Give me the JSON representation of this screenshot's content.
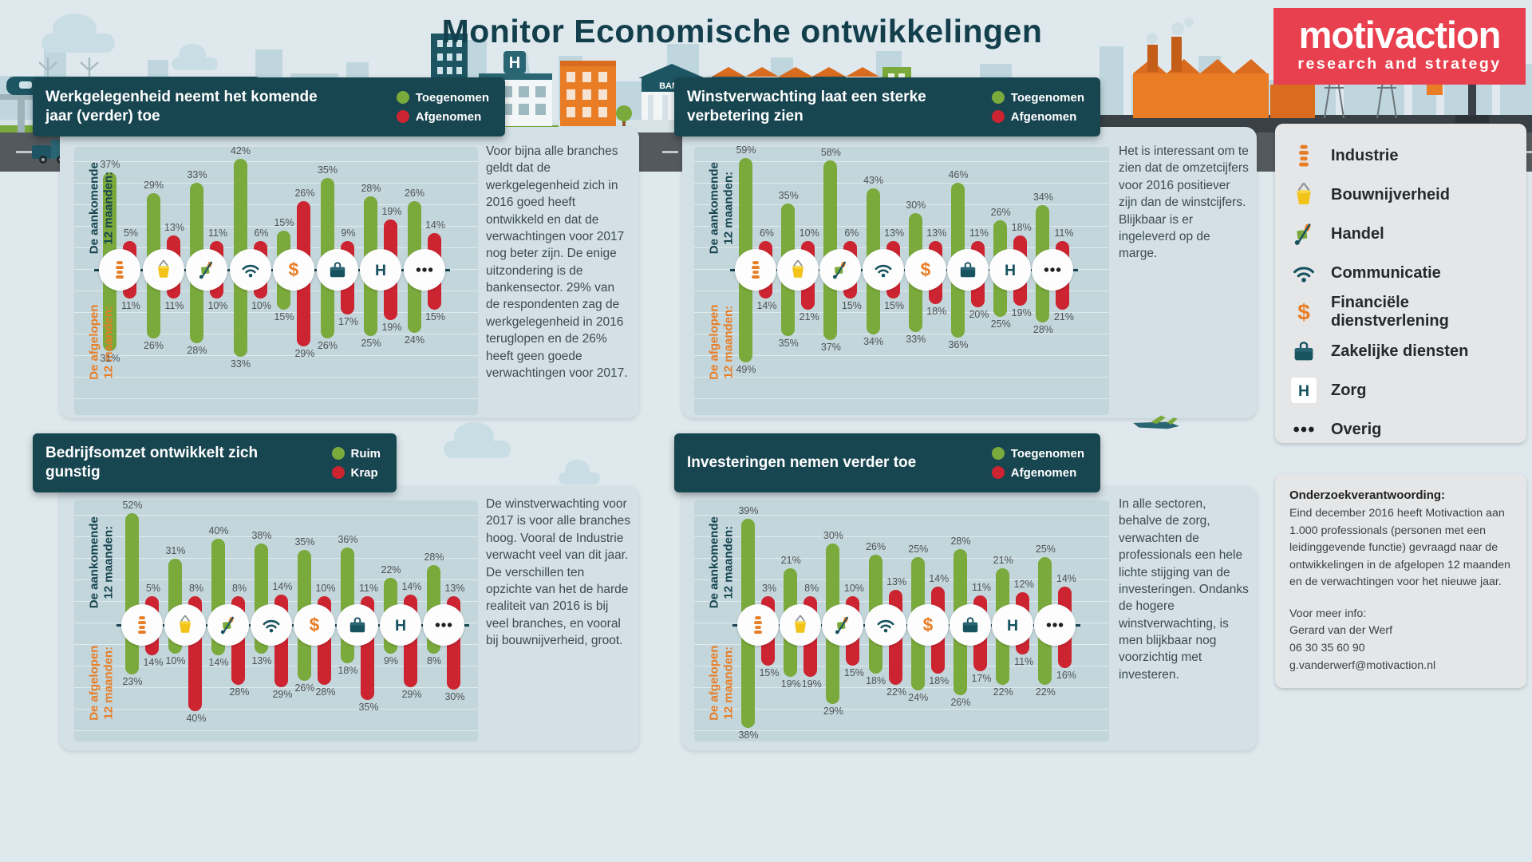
{
  "title": "Monitor Economische ontwikkelingen",
  "logo": {
    "name": "motivaction",
    "tagline": "research and strategy"
  },
  "colors": {
    "green": "#7aa93c",
    "red": "#cc2430",
    "orange": "#e87d26",
    "teal_dark": "#174550",
    "panel_bg": "#d3e1e6",
    "plot_bg": "#c3d6db",
    "page_bg": "#dfe9ed",
    "logo_red": "#e8404e",
    "box_grey": "#e5e6e7",
    "label_grey": "#4d5356",
    "text_dark": "#3c4a51"
  },
  "unit": "%",
  "axis_labels": {
    "upcoming": [
      "De aankomende",
      "12 maanden:"
    ],
    "past": [
      "De afgelopen",
      "12 maanden:"
    ]
  },
  "categories": [
    "Industrie",
    "Bouwnijverheid",
    "Handel",
    "Communicatie",
    "Financiële dienstverlening",
    "Zakelijke diensten",
    "Zorg",
    "Overig"
  ],
  "category_icons": [
    "industrie",
    "bouwnijverheid",
    "handel",
    "communicatie",
    "financieel",
    "zakelijk",
    "zorg",
    "overig"
  ],
  "chart_data": [
    {
      "id": "werkgelegenheid",
      "type": "bar",
      "title": "Werkgelegenheid neemt het komende jaar (verder) toe",
      "legend": [
        {
          "label": "Toegenomen",
          "color": "green"
        },
        {
          "label": "Afgenomen",
          "color": "red"
        }
      ],
      "categories": [
        "Industrie",
        "Bouwnijverheid",
        "Handel",
        "Communicatie",
        "Financiële dienstverlening",
        "Zakelijke diensten",
        "Zorg",
        "Overig"
      ],
      "series": [
        {
          "name": "Toegenomen — de aankomende 12 maanden",
          "color": "green",
          "direction": "up",
          "values": [
            37,
            29,
            33,
            42,
            15,
            35,
            28,
            26
          ]
        },
        {
          "name": "Afgenomen — de aankomende 12 maanden",
          "color": "red",
          "direction": "up",
          "values": [
            5,
            13,
            11,
            6,
            26,
            9,
            19,
            14
          ]
        },
        {
          "name": "Toegenomen — de afgelopen 12 maanden",
          "color": "green",
          "direction": "down",
          "values": [
            31,
            26,
            28,
            33,
            15,
            26,
            25,
            24
          ]
        },
        {
          "name": "Afgenomen — de afgelopen 12 maanden",
          "color": "red",
          "direction": "down",
          "values": [
            11,
            11,
            10,
            10,
            29,
            17,
            19,
            15
          ]
        }
      ],
      "paragraph": "Voor bijna alle branches geldt dat de werkgelegenheid zich in 2016 goed heeft ontwikkeld en dat de verwachtingen voor 2017 nog beter zijn. De enige uitzondering is de bankensector. 29% van de respondenten zag de werkgelegenheid in 2016 teruglopen en de 26% heeft geen goede verwachtingen voor 2017."
    },
    {
      "id": "winstverwachting",
      "type": "bar",
      "title": "Winstverwachting laat een sterke verbetering zien",
      "legend": [
        {
          "label": "Toegenomen",
          "color": "green"
        },
        {
          "label": "Afgenomen",
          "color": "red"
        }
      ],
      "categories": [
        "Industrie",
        "Bouwnijverheid",
        "Handel",
        "Communicatie",
        "Financiële dienstverlening",
        "Zakelijke diensten",
        "Zorg",
        "Overig"
      ],
      "series": [
        {
          "name": "Toegenomen — de aankomende 12 maanden",
          "color": "green",
          "direction": "up",
          "values": [
            59,
            35,
            58,
            43,
            30,
            46,
            26,
            34
          ]
        },
        {
          "name": "Afgenomen — de aankomende 12 maanden",
          "color": "red",
          "direction": "up",
          "values": [
            6,
            10,
            6,
            13,
            13,
            11,
            18,
            11
          ]
        },
        {
          "name": "Toegenomen — de afgelopen 12 maanden",
          "color": "green",
          "direction": "down",
          "values": [
            49,
            35,
            37,
            34,
            33,
            36,
            25,
            28
          ]
        },
        {
          "name": "Afgenomen — de afgelopen 12 maanden",
          "color": "red",
          "direction": "down",
          "values": [
            14,
            21,
            15,
            15,
            18,
            20,
            19,
            21
          ]
        }
      ],
      "paragraph": "Het is interessant om te zien dat de omzetcijfers voor 2016 positiever zijn dan de winstcijfers.  Blijkbaar is er ingeleverd op de marge."
    },
    {
      "id": "bedrijfsomzet",
      "type": "bar",
      "title": "Bedrijfsomzet ontwikkelt zich gunstig",
      "legend": [
        {
          "label": "Ruim",
          "color": "green"
        },
        {
          "label": "Krap",
          "color": "red"
        }
      ],
      "categories": [
        "Industrie",
        "Bouwnijverheid",
        "Handel",
        "Communicatie",
        "Financiële dienstverlening",
        "Zakelijke diensten",
        "Zorg",
        "Overig"
      ],
      "series": [
        {
          "name": "Ruim — de aankomende 12 maanden",
          "color": "green",
          "direction": "up",
          "values": [
            52,
            31,
            40,
            38,
            35,
            36,
            22,
            28
          ]
        },
        {
          "name": "Krap — de aankomende 12 maanden",
          "color": "red",
          "direction": "up",
          "values": [
            5,
            8,
            8,
            14,
            10,
            11,
            14,
            13
          ]
        },
        {
          "name": "Ruim — de afgelopen 12 maanden",
          "color": "green",
          "direction": "down",
          "values": [
            23,
            10,
            14,
            13,
            26,
            18,
            9,
            8
          ]
        },
        {
          "name": "Krap — de afgelopen 12 maanden",
          "color": "red",
          "direction": "down",
          "values": [
            14,
            40,
            28,
            29,
            28,
            35,
            29,
            30
          ]
        }
      ],
      "paragraph": "De winstverwachting voor 2017 is voor alle branches hoog.  Vooral de Industrie verwacht veel van dit jaar. De verschillen ten opzichte van het de harde realiteit van 2016 is bij veel branches, en vooral bij bouwnijverheid, groot."
    },
    {
      "id": "investeringen",
      "type": "bar",
      "title": "Investeringen nemen verder toe",
      "legend": [
        {
          "label": "Toegenomen",
          "color": "green"
        },
        {
          "label": "Afgenomen",
          "color": "red"
        }
      ],
      "categories": [
        "Industrie",
        "Bouwnijverheid",
        "Handel",
        "Communicatie",
        "Financiële dienstverlening",
        "Zakelijke diensten",
        "Zorg",
        "Overig"
      ],
      "series": [
        {
          "name": "Toegenomen — de aankomende 12 maanden",
          "color": "green",
          "direction": "up",
          "values": [
            39,
            21,
            30,
            26,
            25,
            28,
            21,
            25
          ]
        },
        {
          "name": "Afgenomen — de aankomende 12 maanden",
          "color": "red",
          "direction": "up",
          "values": [
            3,
            8,
            10,
            13,
            14,
            11,
            12,
            14
          ]
        },
        {
          "name": "Toegenomen — de afgelopen 12 maanden",
          "color": "green",
          "direction": "down",
          "values": [
            38,
            19,
            29,
            18,
            24,
            26,
            22,
            22
          ]
        },
        {
          "name": "Afgenomen — de afgelopen 12 maanden",
          "color": "red",
          "direction": "down",
          "values": [
            15,
            19,
            15,
            22,
            18,
            17,
            11,
            16
          ]
        }
      ],
      "paragraph": "In alle sectoren, behalve de zorg, verwachten de professionals een hele lichte stijging van de investeringen. Ondanks de hogere winstverwachting, is men blijkbaar nog voorzichtig met investeren."
    }
  ],
  "sidebar": {
    "items": [
      {
        "icon": "industrie",
        "label": "Industrie"
      },
      {
        "icon": "bouwnijverheid",
        "label": "Bouwnijverheid"
      },
      {
        "icon": "handel",
        "label": "Handel"
      },
      {
        "icon": "communicatie",
        "label": "Communicatie"
      },
      {
        "icon": "financieel",
        "label": "Financiële dienstverlening"
      },
      {
        "icon": "zakelijk",
        "label": "Zakelijke diensten"
      },
      {
        "icon": "zorg",
        "label": "Zorg"
      },
      {
        "icon": "overig",
        "label": "Overig"
      }
    ]
  },
  "info_box": {
    "heading": "Onderzoekverantwoording:",
    "body": "Eind december 2016 heeft Motivaction aan 1.000 professionals (personen met een leidinggevende functie) gevraagd naar de ontwikkelingen in de afgelopen 12 maanden en de verwachtingen voor het nieuwe jaar.",
    "more_info_label": "Voor meer info:",
    "contact_name": "Gerard van der Werf",
    "phone": "06 30 35 60 90",
    "email": "g.vanderwerf@motivaction.nl"
  },
  "illustration": {
    "bank_label": "BANK",
    "hospital_label": "H"
  }
}
